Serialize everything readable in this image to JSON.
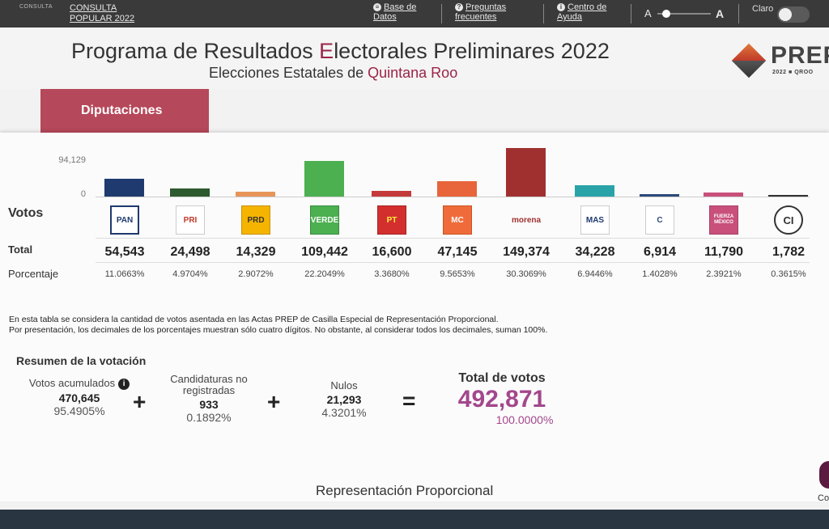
{
  "topbar": {
    "brand_small": "CONSULTA",
    "consulta_label": "CONSULTA POPULAR 2022",
    "nav": [
      {
        "icon": "database-icon",
        "label": "Base de Datos"
      },
      {
        "icon": "question-icon",
        "label": "Preguntas frecuentes"
      },
      {
        "icon": "info-icon",
        "label": "Centro de Ayuda"
      }
    ],
    "font_small": "A",
    "font_large": "A",
    "theme_label": "Claro"
  },
  "header": {
    "title_part1": "Programa de Resultados ",
    "title_accent": "E",
    "title_part2": "lectorales Preliminares 2022",
    "subtitle_prefix": "Elecciones Estatales de ",
    "subtitle_state": "Quintana Roo",
    "logo_text": "PREP",
    "logo_sub": "2022 ■ QROO"
  },
  "tab": {
    "label": "Diputaciones"
  },
  "chart_data": {
    "type": "bar",
    "y_ticks": [
      "94,129",
      "0"
    ],
    "categories": [
      "PAN",
      "PRI",
      "PRD",
      "VERDE",
      "PT",
      "MC",
      "morena",
      "MAS",
      "CONFIANZA",
      "FUERZA MÉXICO",
      "CI"
    ],
    "values": [
      54543,
      24498,
      14329,
      109442,
      16600,
      47145,
      149374,
      34228,
      6914,
      11790,
      1782
    ],
    "colors": [
      "#1e3a6e",
      "#2d5a2e",
      "#e8955a",
      "#4caf50",
      "#c43a3a",
      "#e8643a",
      "#a03030",
      "#2aa3a8",
      "#2c4a7a",
      "#c8507a",
      "#333333"
    ]
  },
  "rows": {
    "votos_label": "Votos",
    "total_label": "Total",
    "pct_label": "Porcentaje"
  },
  "parties": [
    {
      "logo": "PAN",
      "votes": "54,543",
      "pct": "11.0663%"
    },
    {
      "logo": "PRI",
      "votes": "24,498",
      "pct": "4.9704%"
    },
    {
      "logo": "PRD",
      "votes": "14,329",
      "pct": "2.9072%"
    },
    {
      "logo": "VERDE",
      "votes": "109,442",
      "pct": "22.2049%"
    },
    {
      "logo": "PT",
      "votes": "16,600",
      "pct": "3.3680%"
    },
    {
      "logo": "MC",
      "votes": "47,145",
      "pct": "9.5653%"
    },
    {
      "logo": "morena",
      "votes": "149,374",
      "pct": "30.3069%"
    },
    {
      "logo": "MAS",
      "votes": "34,228",
      "pct": "6.9446%"
    },
    {
      "logo": "C",
      "votes": "6,914",
      "pct": "1.4028%"
    },
    {
      "logo": "FUERZA MÉXICO",
      "votes": "11,790",
      "pct": "2.3921%"
    },
    {
      "logo": "CI",
      "votes": "1,782",
      "pct": "0.3615%"
    }
  ],
  "note": {
    "line1": "En esta tabla se considera la cantidad de votos asentada en las Actas PREP de Casilla Especial de Representación Proporcional.",
    "line2": "Por presentación, los decimales de los porcentajes muestran sólo cuatro dígitos. No obstante, al considerar todos los decimales, suman 100%."
  },
  "summary": {
    "title": "Resumen de la votación",
    "acumulados_label": "Votos acumulados",
    "acumulados_value": "470,645",
    "acumulados_pct": "95.4905%",
    "no_reg_label": "Candidaturas no registradas",
    "no_reg_value": "933",
    "no_reg_pct": "0.1892%",
    "nulos_label": "Nulos",
    "nulos_value": "21,293",
    "nulos_pct": "4.3201%",
    "total_label": "Total de votos",
    "total_value": "492,871",
    "total_pct": "100.0000%",
    "plus": "+",
    "equals": "="
  },
  "rp_title": "Representación Proporcional",
  "edge_text": "Co"
}
